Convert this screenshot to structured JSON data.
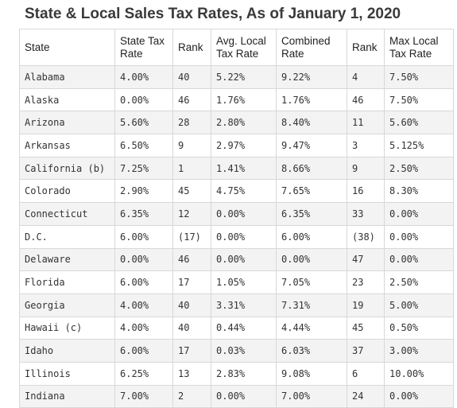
{
  "title": "State & Local Sales Tax Rates, As of January 1, 2020",
  "table": {
    "headers": [
      "State",
      "State Tax Rate",
      "Rank",
      "Avg. Local Tax Rate",
      "Combined Rate",
      "Rank",
      "Max Local Tax Rate"
    ],
    "rows": [
      [
        "Alabama",
        "4.00%",
        "40",
        "5.22%",
        "9.22%",
        "4",
        "7.50%"
      ],
      [
        "Alaska",
        "0.00%",
        "46",
        "1.76%",
        "1.76%",
        "46",
        "7.50%"
      ],
      [
        "Arizona",
        "5.60%",
        "28",
        "2.80%",
        "8.40%",
        "11",
        "5.60%"
      ],
      [
        "Arkansas",
        "6.50%",
        "9",
        "2.97%",
        "9.47%",
        "3",
        "5.125%"
      ],
      [
        "California (b)",
        "7.25%",
        "1",
        "1.41%",
        "8.66%",
        "9",
        "2.50%"
      ],
      [
        "Colorado",
        "2.90%",
        "45",
        "4.75%",
        "7.65%",
        "16",
        "8.30%"
      ],
      [
        "Connecticut",
        "6.35%",
        "12",
        "0.00%",
        "6.35%",
        "33",
        "0.00%"
      ],
      [
        "D.C.",
        "6.00%",
        "(17)",
        "0.00%",
        "6.00%",
        "(38)",
        "0.00%"
      ],
      [
        "Delaware",
        "0.00%",
        "46",
        "0.00%",
        "0.00%",
        "47",
        "0.00%"
      ],
      [
        "Florida",
        "6.00%",
        "17",
        "1.05%",
        "7.05%",
        "23",
        "2.50%"
      ],
      [
        "Georgia",
        "4.00%",
        "40",
        "3.31%",
        "7.31%",
        "19",
        "5.00%"
      ],
      [
        "Hawaii (c)",
        "4.00%",
        "40",
        "0.44%",
        "4.44%",
        "45",
        "0.50%"
      ],
      [
        "Idaho",
        "6.00%",
        "17",
        "0.03%",
        "6.03%",
        "37",
        "3.00%"
      ],
      [
        "Illinois",
        "6.25%",
        "13",
        "2.83%",
        "9.08%",
        "6",
        "10.00%"
      ],
      [
        "Indiana",
        "7.00%",
        "2",
        "0.00%",
        "7.00%",
        "24",
        "0.00%"
      ]
    ]
  }
}
